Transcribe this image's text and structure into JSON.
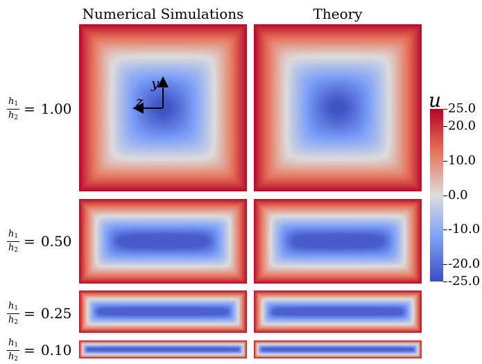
{
  "column_titles": {
    "left": "Numerical Simulations",
    "right": "Theory"
  },
  "rows": [
    {
      "ratio_value": "1.00",
      "aspect_ratio": 1.0
    },
    {
      "ratio_value": "0.50",
      "aspect_ratio": 0.5
    },
    {
      "ratio_value": "0.25",
      "aspect_ratio": 0.25
    },
    {
      "ratio_value": "0.10",
      "aspect_ratio": 0.1
    }
  ],
  "ratio_label": {
    "numerator": "h",
    "numerator_sub": "1",
    "denominator": "h",
    "denominator_sub": "2",
    "equals": "="
  },
  "colorbar": {
    "title": "u",
    "min": -25.0,
    "max": 25.0,
    "tick_labels": [
      "25.0",
      "20.0",
      "10.0",
      "0.0",
      "-10.0",
      "-20.0",
      "-25.0"
    ],
    "tick_values": [
      25.0,
      20.0,
      10.0,
      0.0,
      -10.0,
      -20.0,
      -25.0
    ],
    "colormap_stops": [
      "#3b4cc0",
      "#7b9ff9",
      "#dddcdc",
      "#e7745b",
      "#b40426"
    ]
  },
  "axes_inset": {
    "y_label": "y",
    "z_label": "z"
  }
}
